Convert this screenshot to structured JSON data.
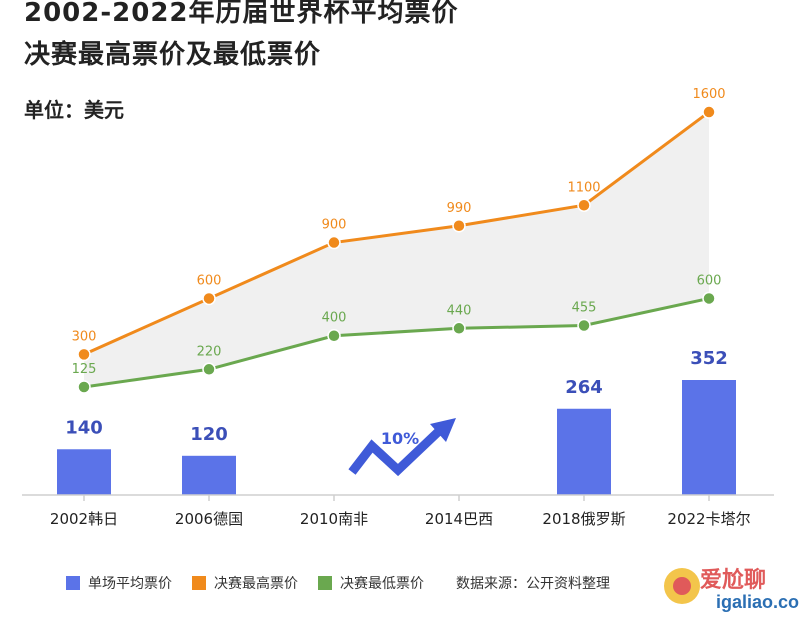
{
  "title_line1": "2002-2022年历届世界杯平均票价",
  "title_line2": "决赛最高票价及最低票价",
  "unit_label": "单位：美元",
  "source_label": "数据来源：公开资料整理",
  "watermark_text": "爱尬聊",
  "watermark_url": "igaliao.com",
  "arrow_label": "10%",
  "colors": {
    "bar": "#5b73e8",
    "max_line": "#f08a1c",
    "min_line": "#6aa84f",
    "band": "#f0f0f0"
  },
  "chart_data": {
    "type": "line",
    "categories": [
      "2002韩日",
      "2006德国",
      "2010南非",
      "2014巴西",
      "2018俄罗斯",
      "2022卡塔尔"
    ],
    "series": [
      {
        "name": "单场平均票价",
        "kind": "bar",
        "values": [
          140,
          120,
          null,
          null,
          264,
          352
        ],
        "color": "#5b73e8"
      },
      {
        "name": "决赛最高票价",
        "kind": "line",
        "values": [
          300,
          600,
          900,
          990,
          1100,
          1600
        ],
        "color": "#f08a1c"
      },
      {
        "name": "决赛最低票价",
        "kind": "line",
        "values": [
          125,
          220,
          400,
          440,
          455,
          600
        ],
        "color": "#6aa84f"
      }
    ],
    "title": "2002-2022年历届世界杯平均票价决赛最高票价及最低票价",
    "xlabel": "",
    "ylabel": "单位：美元",
    "grid": false,
    "legend": "bottom"
  }
}
